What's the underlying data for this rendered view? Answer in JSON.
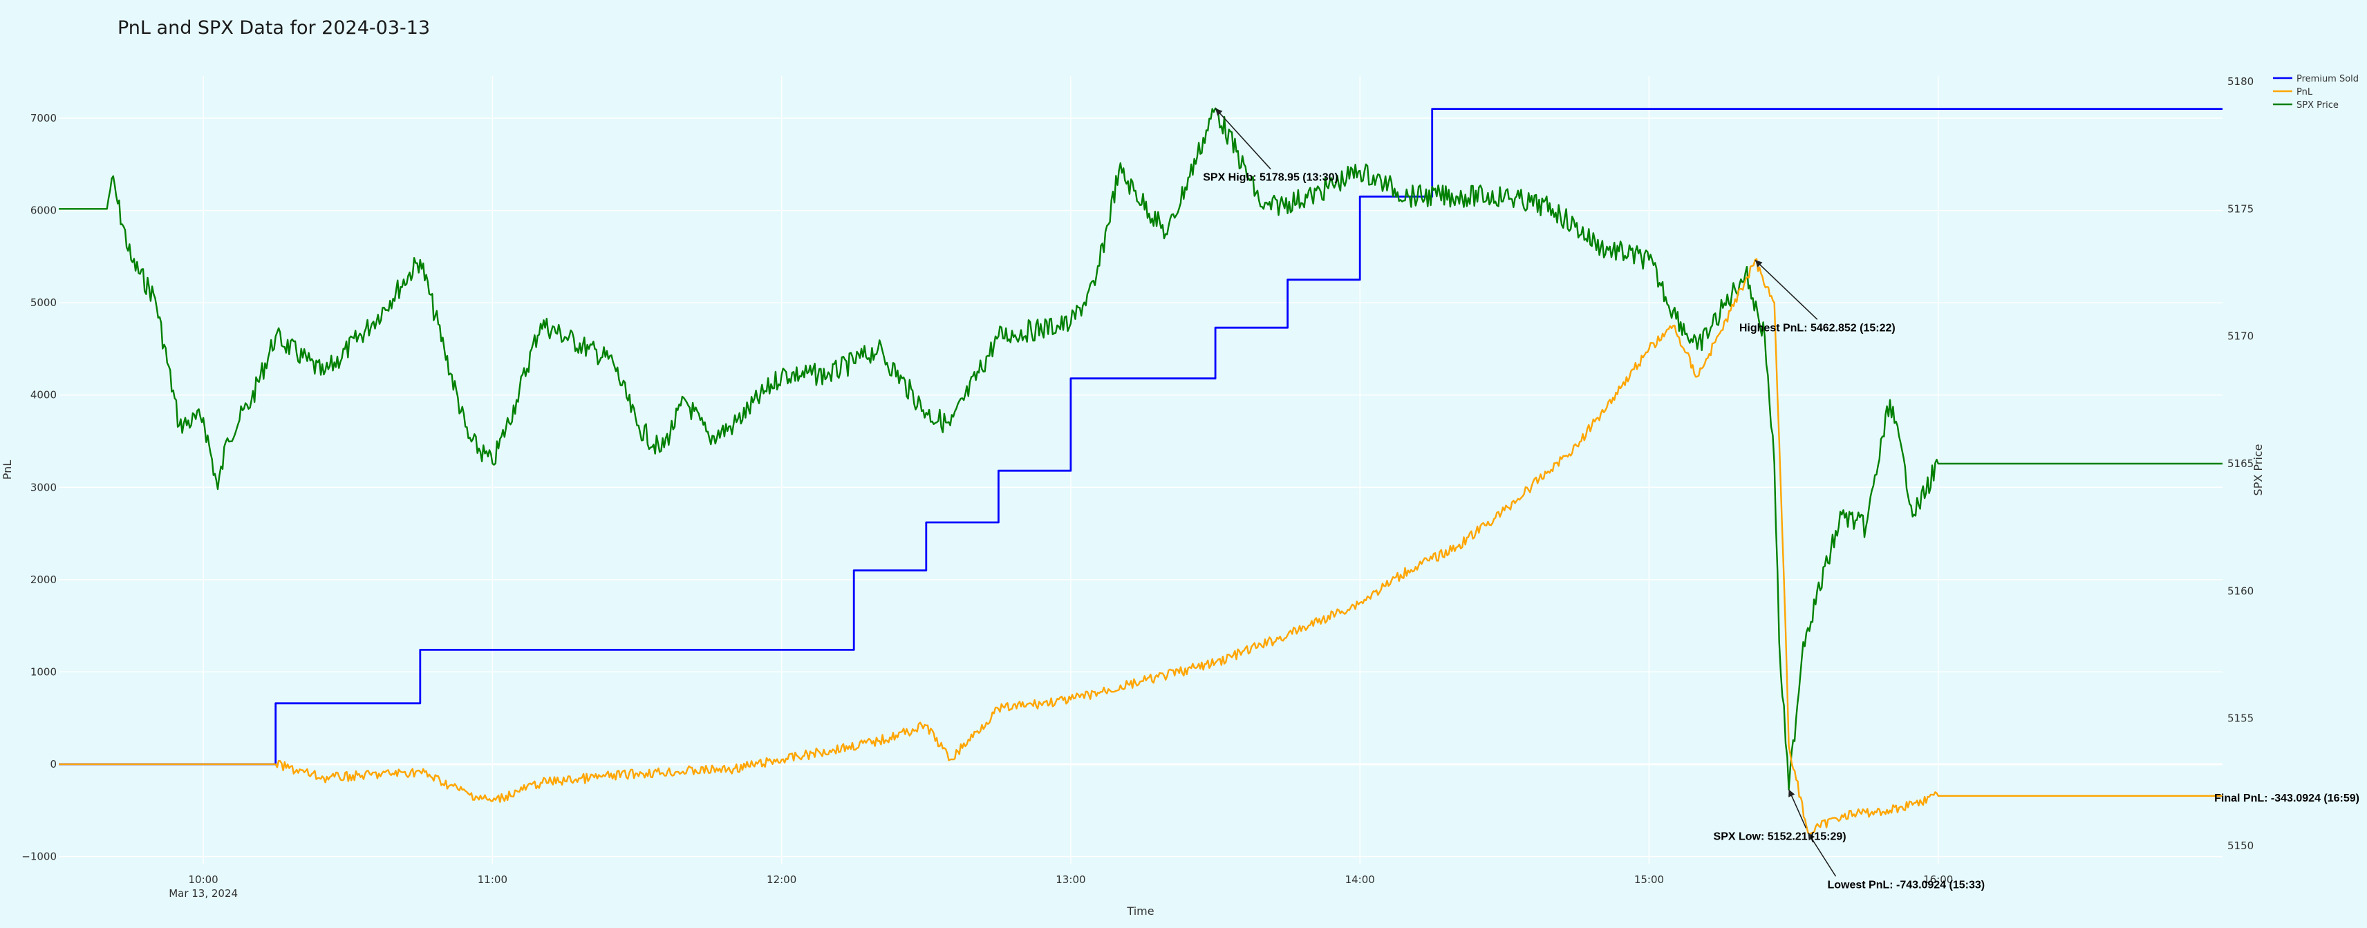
{
  "chart_data": {
    "type": "line",
    "title": "PnL and SPX Data for 2024-03-13",
    "xlabel": "Time",
    "ylabel_left": "PnL",
    "ylabel_right": "SPX Price",
    "x_range": [
      "2024-03-13 09:30",
      "2024-03-13 16:59"
    ],
    "y_left_range": [
      -1000,
      7000
    ],
    "y_right_range": [
      5150,
      5180
    ],
    "x_ticks": [
      {
        "time": "10:00",
        "label": "10:00",
        "sublabel": "Mar 13, 2024"
      },
      {
        "time": "11:00",
        "label": "11:00",
        "sublabel": ""
      },
      {
        "time": "12:00",
        "label": "12:00",
        "sublabel": ""
      },
      {
        "time": "13:00",
        "label": "13:00",
        "sublabel": ""
      },
      {
        "time": "14:00",
        "label": "14:00",
        "sublabel": ""
      },
      {
        "time": "15:00",
        "label": "15:00",
        "sublabel": ""
      },
      {
        "time": "16:00",
        "label": "16:00",
        "sublabel": ""
      }
    ],
    "y_left_ticks": [
      "−1000",
      "0",
      "1000",
      "2000",
      "3000",
      "4000",
      "5000",
      "6000",
      "7000"
    ],
    "y_right_ticks": [
      "5150",
      "5155",
      "5160",
      "5165",
      "5170",
      "5175",
      "5180"
    ],
    "grid": true,
    "legend_position": "top-right",
    "series": [
      {
        "name": "Premium Sold",
        "axis": "left",
        "color": "#0000ff",
        "shape": "step",
        "points": [
          [
            "09:30",
            0
          ],
          [
            "10:15",
            0
          ],
          [
            "10:15",
            660
          ],
          [
            "10:45",
            660
          ],
          [
            "10:45",
            1240
          ],
          [
            "12:15",
            1240
          ],
          [
            "12:15",
            2100
          ],
          [
            "12:30",
            2100
          ],
          [
            "12:30",
            2620
          ],
          [
            "12:45",
            2620
          ],
          [
            "12:45",
            3180
          ],
          [
            "13:00",
            3180
          ],
          [
            "13:00",
            4180
          ],
          [
            "13:30",
            4180
          ],
          [
            "13:30",
            4730
          ],
          [
            "13:45",
            4730
          ],
          [
            "13:45",
            5250
          ],
          [
            "14:00",
            5250
          ],
          [
            "14:00",
            6150
          ],
          [
            "14:15",
            6150
          ],
          [
            "14:15",
            7100
          ],
          [
            "16:59",
            7100
          ]
        ]
      },
      {
        "name": "PnL",
        "axis": "left",
        "color": "#ffa500",
        "points": [
          [
            "09:30",
            0
          ],
          [
            "10:15",
            0
          ],
          [
            "10:25",
            -150
          ],
          [
            "10:45",
            -80
          ],
          [
            "10:55",
            -320
          ],
          [
            "11:00",
            -400
          ],
          [
            "11:10",
            -200
          ],
          [
            "11:30",
            -100
          ],
          [
            "11:50",
            -50
          ],
          [
            "12:00",
            50
          ],
          [
            "12:10",
            150
          ],
          [
            "12:20",
            250
          ],
          [
            "12:30",
            420
          ],
          [
            "12:35",
            50
          ],
          [
            "12:45",
            600
          ],
          [
            "13:00",
            700
          ],
          [
            "13:15",
            900
          ],
          [
            "13:30",
            1100
          ],
          [
            "13:45",
            1400
          ],
          [
            "14:00",
            1750
          ],
          [
            "14:10",
            2100
          ],
          [
            "14:20",
            2350
          ],
          [
            "14:30",
            2750
          ],
          [
            "14:45",
            3450
          ],
          [
            "14:50",
            3800
          ],
          [
            "15:00",
            4500
          ],
          [
            "15:05",
            4750
          ],
          [
            "15:10",
            4200
          ],
          [
            "15:15",
            4700
          ],
          [
            "15:22",
            5462.852
          ],
          [
            "15:26",
            5000
          ],
          [
            "15:28",
            2000
          ],
          [
            "15:29",
            200
          ],
          [
            "15:33",
            -743.0924
          ],
          [
            "15:40",
            -550
          ],
          [
            "15:50",
            -500
          ],
          [
            "15:55",
            -420
          ],
          [
            "16:00",
            -343.0924
          ],
          [
            "16:59",
            -343.0924
          ]
        ]
      },
      {
        "name": "SPX Price",
        "axis": "right",
        "color": "#008000",
        "points": [
          [
            "09:30",
            5175
          ],
          [
            "09:40",
            5175
          ],
          [
            "09:41",
            5176.2
          ],
          [
            "09:45",
            5173
          ],
          [
            "09:50",
            5171.5
          ],
          [
            "09:55",
            5166.5
          ],
          [
            "10:00",
            5166.8
          ],
          [
            "10:03",
            5164
          ],
          [
            "10:05",
            5166
          ],
          [
            "10:10",
            5167.5
          ],
          [
            "10:15",
            5170
          ],
          [
            "10:25",
            5168.5
          ],
          [
            "10:35",
            5170.5
          ],
          [
            "10:45",
            5173
          ],
          [
            "10:50",
            5169.5
          ],
          [
            "10:55",
            5166
          ],
          [
            "11:00",
            5165
          ],
          [
            "11:05",
            5167.5
          ],
          [
            "11:10",
            5170.5
          ],
          [
            "11:20",
            5169.5
          ],
          [
            "11:25",
            5169
          ],
          [
            "11:30",
            5166.5
          ],
          [
            "11:35",
            5165.5
          ],
          [
            "11:40",
            5167.5
          ],
          [
            "11:45",
            5166
          ],
          [
            "11:50",
            5166.5
          ],
          [
            "12:00",
            5168.5
          ],
          [
            "12:10",
            5168.5
          ],
          [
            "12:20",
            5169.5
          ],
          [
            "12:30",
            5167
          ],
          [
            "12:35",
            5166.5
          ],
          [
            "12:45",
            5170
          ],
          [
            "13:00",
            5170.5
          ],
          [
            "13:05",
            5172
          ],
          [
            "13:10",
            5176.5
          ],
          [
            "13:20",
            5174
          ],
          [
            "13:30",
            5178.95
          ],
          [
            "13:40",
            5175
          ],
          [
            "13:50",
            5175.5
          ],
          [
            "14:00",
            5176.5
          ],
          [
            "14:10",
            5175.5
          ],
          [
            "14:20",
            5175.5
          ],
          [
            "14:30",
            5175.5
          ],
          [
            "14:40",
            5175
          ],
          [
            "14:50",
            5173.5
          ],
          [
            "15:00",
            5173
          ],
          [
            "15:05",
            5171
          ],
          [
            "15:10",
            5169.5
          ],
          [
            "15:20",
            5172.5
          ],
          [
            "15:24",
            5170
          ],
          [
            "15:26",
            5165
          ],
          [
            "15:27",
            5158
          ],
          [
            "15:29",
            5152.21
          ],
          [
            "15:32",
            5158
          ],
          [
            "15:40",
            5163
          ],
          [
            "15:45",
            5162.5
          ],
          [
            "15:50",
            5167.5
          ],
          [
            "15:55",
            5163
          ],
          [
            "16:00",
            5165
          ],
          [
            "16:59",
            5165
          ]
        ]
      }
    ],
    "annotations": [
      {
        "label": "SPX High: 5178.95 (13:30)",
        "series": "SPX Price",
        "x": "13:30",
        "y": 5178.95
      },
      {
        "label": "Highest PnL: 5462.852 (15:22)",
        "series": "PnL",
        "x": "15:22",
        "y": 5462.852
      },
      {
        "label": "Lowest PnL: -743.0924 (15:33)",
        "series": "PnL",
        "x": "15:33",
        "y": -743.0924
      },
      {
        "label": "SPX Low: 5152.21 (15:29)",
        "series": "SPX Price",
        "x": "15:29",
        "y": 5152.21
      },
      {
        "label": "Final PnL: -343.0924 (16:59)",
        "series": "PnL",
        "x": "16:59",
        "y": -343.0924
      }
    ]
  }
}
